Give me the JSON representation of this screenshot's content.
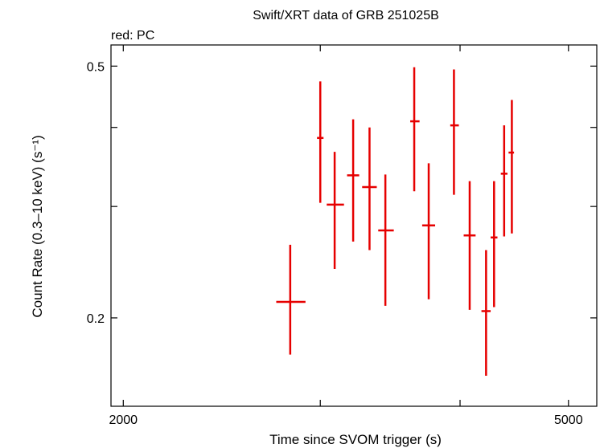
{
  "chart_data": {
    "type": "scatter",
    "title": "Swift/XRT data of GRB 251025B",
    "subtitle": "red: PC",
    "xlabel": "Time since SVOM trigger (s)",
    "ylabel": "Count Rate (0.3–10 keV) (s⁻¹)",
    "xscale": "log",
    "yscale": "log",
    "xlim": [
      1950,
      5300
    ],
    "ylim": [
      0.145,
      0.54
    ],
    "x_ticks": [
      {
        "value": 2000,
        "label": "2000"
      },
      {
        "value": 3000,
        "label": ""
      },
      {
        "value": 4000,
        "label": ""
      },
      {
        "value": 5000,
        "label": "5000"
      }
    ],
    "y_ticks": [
      {
        "value": 0.2,
        "label": "0.2"
      },
      {
        "value": 0.3,
        "label": ""
      },
      {
        "value": 0.4,
        "label": ""
      },
      {
        "value": 0.5,
        "label": "0.5"
      }
    ],
    "grid": false,
    "legend": "none",
    "series": [
      {
        "color": "#e60000",
        "points": [
          {
            "x": 2820,
            "xlo": 2740,
            "xhi": 2910,
            "y": 0.212,
            "ylo": 0.175,
            "yhi": 0.261
          },
          {
            "x": 3000,
            "xlo": 2980,
            "xhi": 3020,
            "y": 0.385,
            "ylo": 0.304,
            "yhi": 0.473
          },
          {
            "x": 3090,
            "xlo": 3040,
            "xhi": 3150,
            "y": 0.302,
            "ylo": 0.239,
            "yhi": 0.366
          },
          {
            "x": 3210,
            "xlo": 3170,
            "xhi": 3250,
            "y": 0.336,
            "ylo": 0.264,
            "yhi": 0.412
          },
          {
            "x": 3320,
            "xlo": 3270,
            "xhi": 3370,
            "y": 0.322,
            "ylo": 0.256,
            "yhi": 0.4
          },
          {
            "x": 3430,
            "xlo": 3380,
            "xhi": 3490,
            "y": 0.275,
            "ylo": 0.209,
            "yhi": 0.337
          },
          {
            "x": 3640,
            "xlo": 3610,
            "xhi": 3680,
            "y": 0.409,
            "ylo": 0.317,
            "yhi": 0.498
          },
          {
            "x": 3750,
            "xlo": 3700,
            "xhi": 3800,
            "y": 0.28,
            "ylo": 0.214,
            "yhi": 0.351
          },
          {
            "x": 3950,
            "xlo": 3920,
            "xhi": 3990,
            "y": 0.403,
            "ylo": 0.313,
            "yhi": 0.494
          },
          {
            "x": 4080,
            "xlo": 4030,
            "xhi": 4130,
            "y": 0.27,
            "ylo": 0.206,
            "yhi": 0.329
          },
          {
            "x": 4220,
            "xlo": 4180,
            "xhi": 4260,
            "y": 0.205,
            "ylo": 0.162,
            "yhi": 0.256
          },
          {
            "x": 4290,
            "xlo": 4260,
            "xhi": 4320,
            "y": 0.268,
            "ylo": 0.208,
            "yhi": 0.329
          },
          {
            "x": 4380,
            "xlo": 4350,
            "xhi": 4410,
            "y": 0.338,
            "ylo": 0.269,
            "yhi": 0.403
          },
          {
            "x": 4450,
            "xlo": 4420,
            "xhi": 4470,
            "y": 0.365,
            "ylo": 0.272,
            "yhi": 0.442
          }
        ]
      }
    ]
  }
}
